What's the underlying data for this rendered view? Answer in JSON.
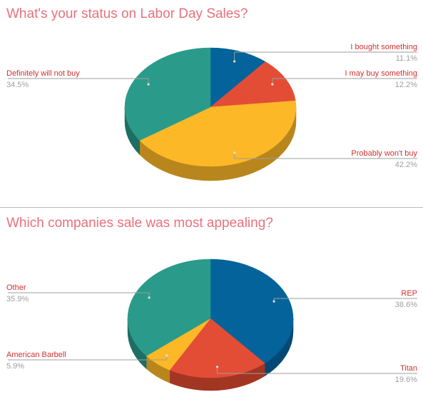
{
  "colors": {
    "title": "#e8717d",
    "label": "#d32f2f",
    "percent": "#9e9e9e",
    "leader_line": "#9e9e9e",
    "divider": "#bdbdbd"
  },
  "chart_data": [
    {
      "type": "pie",
      "style": "3d",
      "title": "What's your status on Labor Day Sales?",
      "slices": [
        {
          "label": "I bought something",
          "value": 11.1,
          "percent_text": "11.1%",
          "color": "#03639a",
          "side_color": "#024a74"
        },
        {
          "label": "I may buy something",
          "value": 12.2,
          "percent_text": "12.2%",
          "color": "#e34d36",
          "side_color": "#a33523"
        },
        {
          "label": "Probably won't buy",
          "value": 42.2,
          "percent_text": "42.2%",
          "color": "#fcb827",
          "side_color": "#b8861c"
        },
        {
          "label": "Definitely will not buy",
          "value": 34.5,
          "percent_text": "34.5%",
          "color": "#2a9b8a",
          "side_color": "#1e6e63"
        }
      ]
    },
    {
      "type": "pie",
      "style": "3d",
      "title": "Which companies sale was most appealing?",
      "slices": [
        {
          "label": "REP",
          "value": 38.6,
          "percent_text": "38.6%",
          "color": "#03639a",
          "side_color": "#024a74"
        },
        {
          "label": "Titan",
          "value": 19.6,
          "percent_text": "19.6%",
          "color": "#e34d36",
          "side_color": "#a33523"
        },
        {
          "label": "American Barbell",
          "value": 5.9,
          "percent_text": "5.9%",
          "color": "#fcb827",
          "side_color": "#b8861c"
        },
        {
          "label": "Other",
          "value": 35.9,
          "percent_text": "35.9%",
          "color": "#2a9b8a",
          "side_color": "#1e6e63"
        }
      ]
    }
  ]
}
